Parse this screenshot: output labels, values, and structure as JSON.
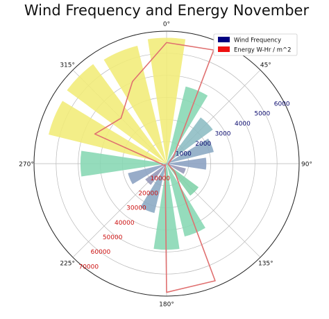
{
  "chart_data": {
    "type": "polar",
    "title": "Wind Frequency and Energy November",
    "angle_tick_labels": [
      "0°",
      "45°",
      "90°",
      "135°",
      "180°",
      "225°",
      "270°",
      "315°"
    ],
    "grid": true,
    "legend": {
      "placement": "top-right",
      "entries": [
        {
          "label": "Wind Frequency",
          "color": "#000080"
        },
        {
          "label": "Energy W-Hr / m^2",
          "color": "#ee1111"
        }
      ]
    },
    "frequency_axis": {
      "ticks": [
        1000,
        2000,
        3000,
        4000,
        5000,
        6000
      ],
      "tick_labels": [
        "1000",
        "2000",
        "3000",
        "4000",
        "5000",
        "6000"
      ],
      "max": 6000,
      "label_color": "#0a0a6e"
    },
    "energy_axis": {
      "ticks": [
        10000,
        20000,
        30000,
        40000,
        50000,
        60000,
        70000
      ],
      "tick_labels": [
        "10000",
        "20000",
        "30000",
        "40000",
        "50000",
        "60000",
        "70000"
      ],
      "max": 70000,
      "label_color": "#cc1111"
    },
    "frequency_series": {
      "name": "Wind Frequency",
      "directions_deg": [
        0,
        22.5,
        45,
        67.5,
        90,
        112.5,
        135,
        157.5,
        180,
        202.5,
        225,
        247.5,
        270,
        292.5,
        315,
        337.5
      ],
      "values": [
        5700,
        3600,
        2600,
        2200,
        1800,
        900,
        1800,
        3400,
        3900,
        2300,
        1200,
        1800,
        3900,
        5500,
        5600,
        5500
      ],
      "colors": [
        "#f1ec78",
        "#86d7b3",
        "#8cbcc3",
        "#8aa8c3",
        "#8aa0c2",
        "#9497b7",
        "#7fd2a8",
        "#86d7b3",
        "#86d7b3",
        "#8aa8c3",
        "#9497b7",
        "#8aa0c2",
        "#86d7b3",
        "#f1ec78",
        "#f1ec78",
        "#f1ec78"
      ]
    },
    "energy_series": {
      "name": "Energy W-Hr / m^2",
      "color": "#e07070",
      "directions_deg": [
        0,
        22.5,
        45,
        67.5,
        90,
        112.5,
        135,
        157.5,
        180,
        202.5,
        225,
        247.5,
        270,
        292.5,
        315,
        337.5
      ],
      "values": [
        64000,
        65000,
        5000,
        1500,
        1000,
        1000,
        6000,
        67000,
        68000,
        2000,
        1000,
        2000,
        3000,
        41000,
        34000,
        47000
      ]
    }
  }
}
